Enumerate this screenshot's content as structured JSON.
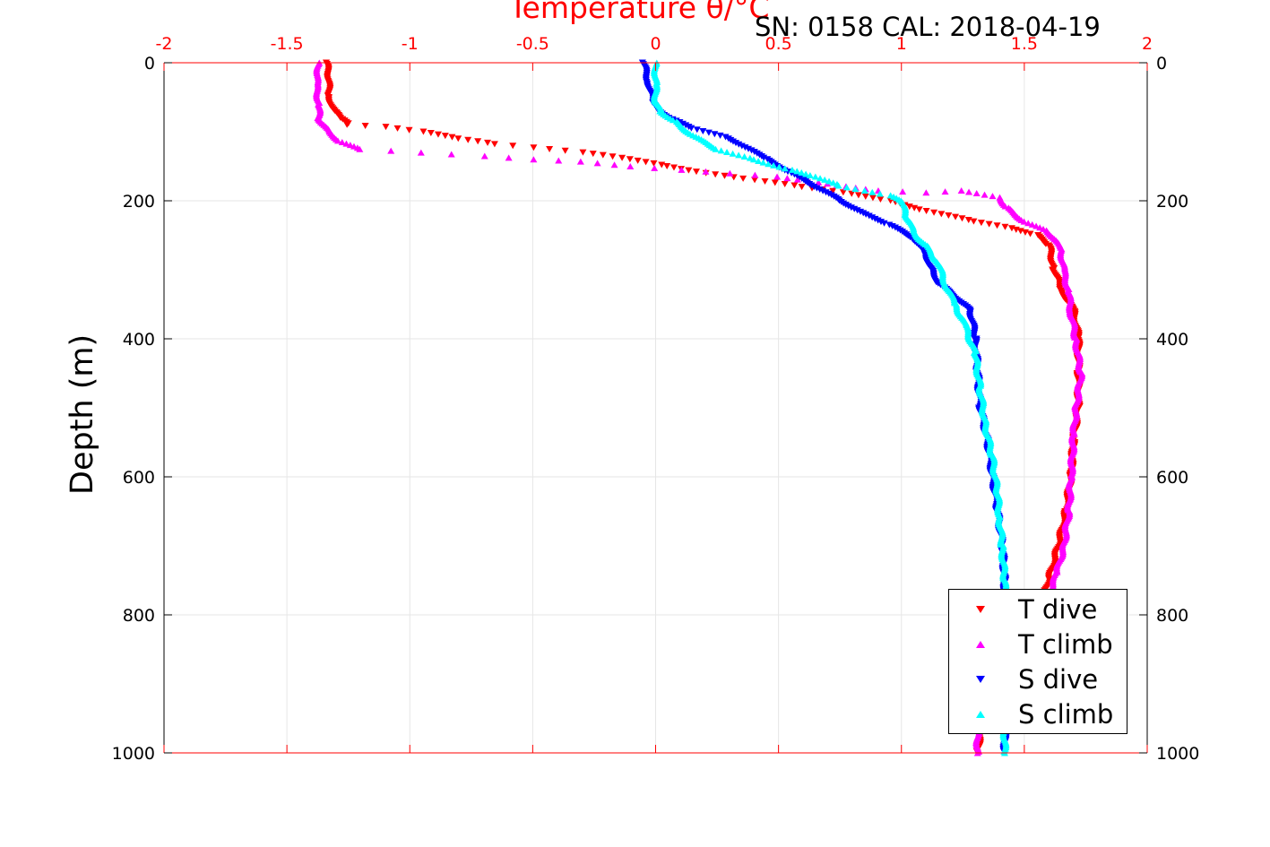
{
  "chart_data": {
    "type": "scatter",
    "title": "Temperature θ/°C",
    "annotation": "SN: 0158  CAL: 2018-04-19",
    "ylabel": "Depth (m)",
    "xlabel": "",
    "xlim": [
      -2,
      2
    ],
    "ylim": [
      0,
      1000
    ],
    "y_reversed": true,
    "x_ticks": [
      "-2",
      "-1.5",
      "-1",
      "-0.5",
      "0",
      "0.5",
      "1",
      "1.5",
      "2"
    ],
    "y_ticks": [
      "0",
      "200",
      "400",
      "600",
      "800",
      "1000"
    ],
    "grid": true,
    "legend_position": "bottom-right",
    "colors": {
      "t_axis": "#ff0000",
      "t_dive": "#ff0000",
      "t_climb": "#ff00ff",
      "s_dive": "#0000ff",
      "s_climb": "#00ffff"
    },
    "series": [
      {
        "name": "T dive",
        "marker": "triangle-down",
        "color": "#ff0000",
        "points": [
          [
            -1.34,
            0
          ],
          [
            -1.33,
            20
          ],
          [
            -1.33,
            50
          ],
          [
            -1.31,
            70
          ],
          [
            -1.28,
            80
          ],
          [
            -1.25,
            90
          ],
          [
            -1.1,
            93
          ],
          [
            -0.95,
            100
          ],
          [
            -0.8,
            110
          ],
          [
            -0.65,
            118
          ],
          [
            -0.5,
            123
          ],
          [
            -0.3,
            130
          ],
          [
            -0.1,
            140
          ],
          [
            0.05,
            150
          ],
          [
            0.2,
            160
          ],
          [
            0.4,
            170
          ],
          [
            0.6,
            180
          ],
          [
            0.8,
            190
          ],
          [
            0.95,
            200
          ],
          [
            1.1,
            215
          ],
          [
            1.3,
            230
          ],
          [
            1.45,
            240
          ],
          [
            1.55,
            250
          ],
          [
            1.6,
            265
          ],
          [
            1.62,
            300
          ],
          [
            1.65,
            330
          ],
          [
            1.7,
            360
          ],
          [
            1.72,
            400
          ],
          [
            1.72,
            450
          ],
          [
            1.72,
            500
          ],
          [
            1.7,
            550
          ],
          [
            1.69,
            600
          ],
          [
            1.67,
            650
          ],
          [
            1.64,
            700
          ],
          [
            1.6,
            750
          ],
          [
            1.55,
            800
          ],
          [
            1.45,
            850
          ],
          [
            1.38,
            900
          ],
          [
            1.33,
            950
          ],
          [
            1.31,
            1000
          ]
        ]
      },
      {
        "name": "T climb",
        "marker": "triangle-up",
        "color": "#ff00ff",
        "points": [
          [
            -1.37,
            0
          ],
          [
            -1.38,
            30
          ],
          [
            -1.37,
            60
          ],
          [
            -1.37,
            80
          ],
          [
            -1.33,
            100
          ],
          [
            -1.28,
            115
          ],
          [
            -1.2,
            125
          ],
          [
            -0.95,
            130
          ],
          [
            -0.7,
            135
          ],
          [
            -0.5,
            140
          ],
          [
            -0.3,
            143
          ],
          [
            -0.1,
            150
          ],
          [
            0.1,
            155
          ],
          [
            0.3,
            160
          ],
          [
            0.5,
            165
          ],
          [
            0.7,
            175
          ],
          [
            0.9,
            185
          ],
          [
            1.1,
            188
          ],
          [
            1.25,
            185
          ],
          [
            1.4,
            195
          ],
          [
            1.43,
            210
          ],
          [
            1.5,
            230
          ],
          [
            1.6,
            245
          ],
          [
            1.65,
            270
          ],
          [
            1.66,
            300
          ],
          [
            1.68,
            330
          ],
          [
            1.69,
            360
          ],
          [
            1.71,
            400
          ],
          [
            1.73,
            450
          ],
          [
            1.71,
            500
          ],
          [
            1.7,
            540
          ],
          [
            1.69,
            600
          ],
          [
            1.68,
            650
          ],
          [
            1.66,
            700
          ],
          [
            1.63,
            740
          ],
          [
            1.6,
            770
          ],
          [
            1.52,
            820
          ],
          [
            1.42,
            870
          ],
          [
            1.36,
            920
          ],
          [
            1.31,
            970
          ],
          [
            1.31,
            1000
          ]
        ]
      },
      {
        "name": "S dive",
        "marker": "triangle-down",
        "color": "#0000ff",
        "points": [
          [
            -0.05,
            0
          ],
          [
            -0.03,
            30
          ],
          [
            -0.01,
            60
          ],
          [
            0.05,
            80
          ],
          [
            0.15,
            95
          ],
          [
            0.3,
            110
          ],
          [
            0.45,
            140
          ],
          [
            0.55,
            160
          ],
          [
            0.65,
            180
          ],
          [
            0.75,
            200
          ],
          [
            0.85,
            220
          ],
          [
            0.95,
            235
          ],
          [
            1.05,
            255
          ],
          [
            1.1,
            280
          ],
          [
            1.12,
            300
          ],
          [
            1.15,
            320
          ],
          [
            1.22,
            340
          ],
          [
            1.28,
            360
          ],
          [
            1.3,
            400
          ],
          [
            1.31,
            450
          ],
          [
            1.32,
            500
          ],
          [
            1.35,
            550
          ],
          [
            1.37,
            600
          ],
          [
            1.39,
            650
          ],
          [
            1.41,
            700
          ],
          [
            1.42,
            750
          ],
          [
            1.42,
            800
          ],
          [
            1.42,
            850
          ],
          [
            1.42,
            900
          ],
          [
            1.42,
            950
          ],
          [
            1.42,
            1000
          ]
        ]
      },
      {
        "name": "S climb",
        "marker": "triangle-up",
        "color": "#00ffff",
        "points": [
          [
            0,
            0
          ],
          [
            0,
            30
          ],
          [
            0,
            55
          ],
          [
            0.02,
            70
          ],
          [
            0.08,
            85
          ],
          [
            0.15,
            105
          ],
          [
            0.25,
            125
          ],
          [
            0.4,
            140
          ],
          [
            0.55,
            155
          ],
          [
            0.65,
            165
          ],
          [
            0.75,
            178
          ],
          [
            0.85,
            185
          ],
          [
            0.95,
            192
          ],
          [
            1.0,
            200
          ],
          [
            1.02,
            220
          ],
          [
            1.05,
            245
          ],
          [
            1.1,
            265
          ],
          [
            1.15,
            290
          ],
          [
            1.18,
            320
          ],
          [
            1.22,
            350
          ],
          [
            1.26,
            380
          ],
          [
            1.3,
            420
          ],
          [
            1.32,
            470
          ],
          [
            1.34,
            520
          ],
          [
            1.37,
            570
          ],
          [
            1.39,
            620
          ],
          [
            1.4,
            660
          ],
          [
            1.41,
            700
          ],
          [
            1.42,
            750
          ],
          [
            1.42,
            800
          ],
          [
            1.42,
            850
          ],
          [
            1.42,
            900
          ],
          [
            1.42,
            950
          ],
          [
            1.42,
            1000
          ]
        ]
      }
    ]
  }
}
